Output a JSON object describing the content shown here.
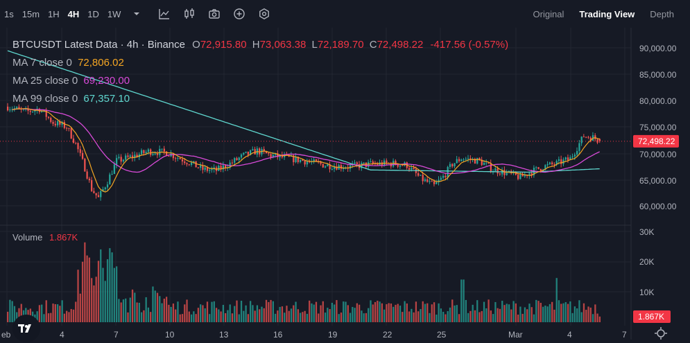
{
  "toolbar": {
    "timeframes": [
      "1s",
      "15m",
      "1H",
      "4H",
      "1D",
      "1W"
    ],
    "active_timeframe": "4H",
    "tools": [
      "chevron-down-icon",
      "indicator-icon",
      "candle-type-icon",
      "camera-icon",
      "plus-circle-icon",
      "settings-icon"
    ],
    "views": [
      "Original",
      "Trading View",
      "Depth"
    ],
    "active_view": "Trading View"
  },
  "legend": {
    "symbol": "BTCUSDT Latest Data · 4h · Binance",
    "ohlc": {
      "o_label": "O",
      "o": "72,915.80",
      "h_label": "H",
      "h": "73,063.38",
      "l_label": "L",
      "l": "72,189.70",
      "c_label": "C",
      "c": "72,498.22",
      "change": "-417.56 (-0.57%)"
    },
    "ma": [
      {
        "label": "MA 7 close 0",
        "value": "72,806.02",
        "color": "#f5a623"
      },
      {
        "label": "MA 25 close 0",
        "value": "69,230.00",
        "color": "#d84ad8"
      },
      {
        "label": "MA 99 close 0",
        "value": "67,357.10",
        "color": "#5fd7cf"
      }
    ],
    "volume_label": "Volume",
    "volume_value": "1.867K"
  },
  "price_axis": {
    "labels": [
      "90,000.00",
      "85,000.00",
      "80,000.00",
      "75,000.00",
      "70,000.00",
      "65,000.00",
      "60,000.00"
    ],
    "current_price": "72,498.22"
  },
  "volume_axis": {
    "labels": [
      "30K",
      "20K",
      "10K"
    ],
    "current_volume": "1.867K"
  },
  "time_axis": {
    "labels": [
      "eb",
      "4",
      "7",
      "10",
      "13",
      "16",
      "19",
      "22",
      "25",
      "Mar",
      "4",
      "7"
    ]
  },
  "colors": {
    "up": "#26a69a",
    "down": "#ef5350",
    "background": "#161a25",
    "grid": "#222631",
    "price_tag": "#f23645"
  }
}
